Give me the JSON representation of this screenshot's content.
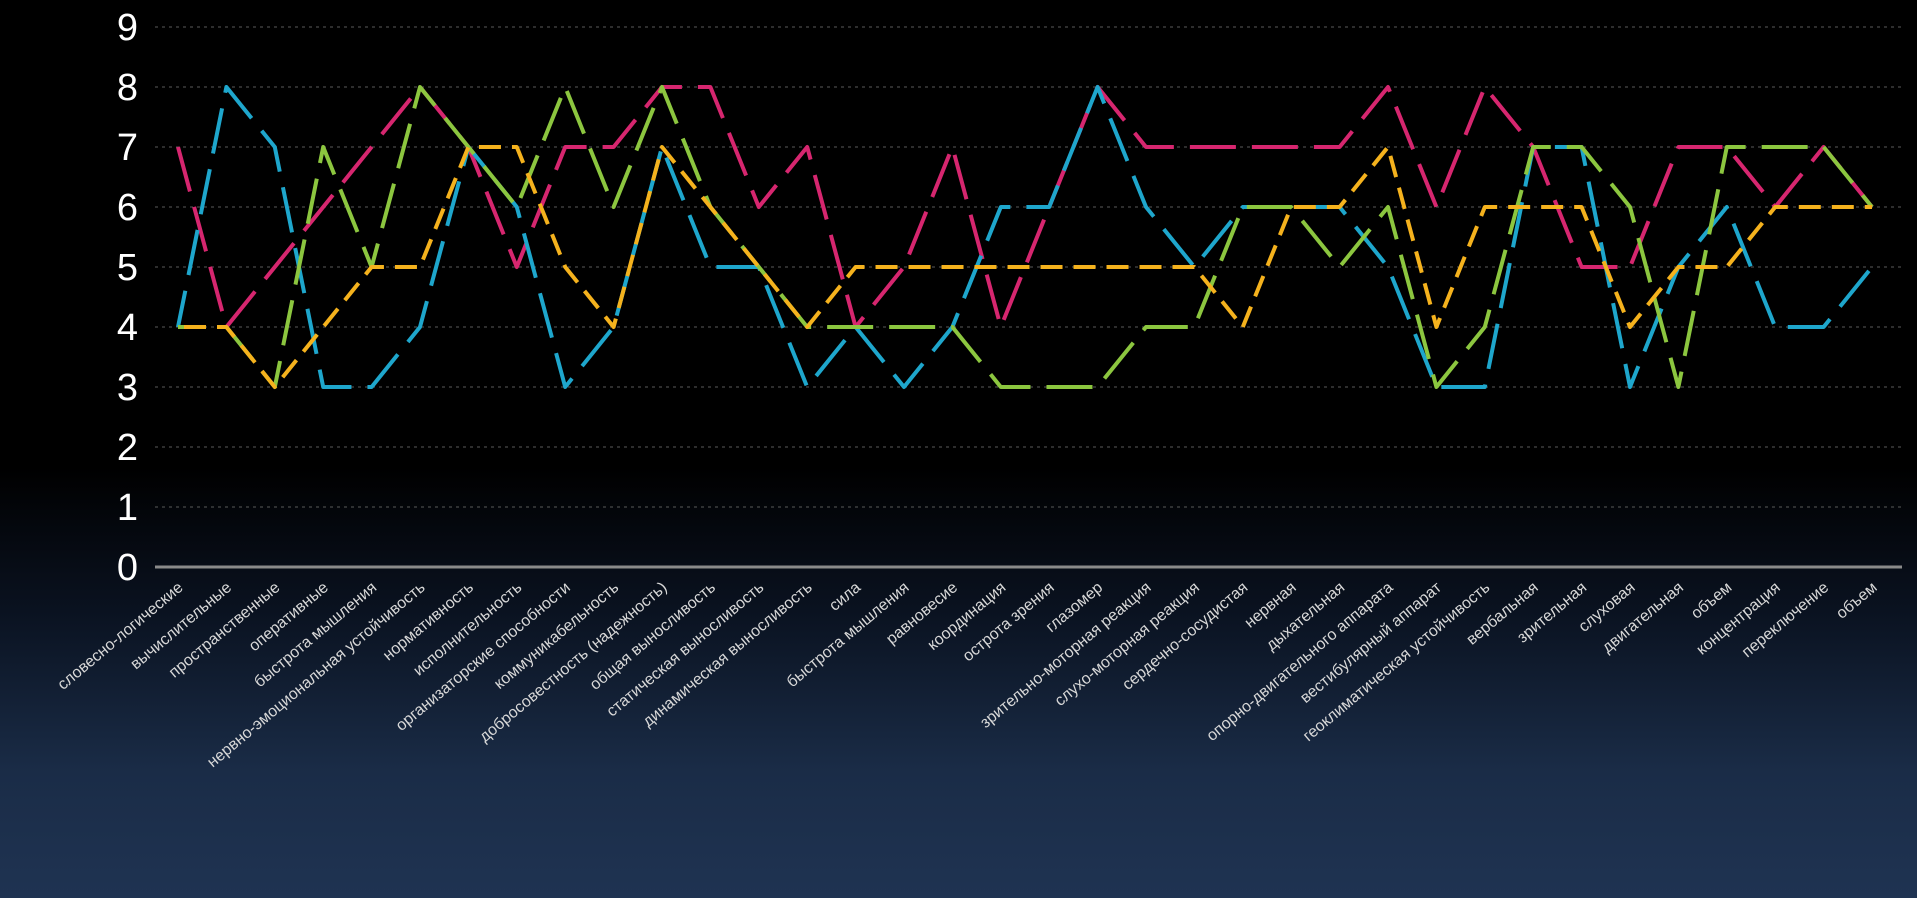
{
  "chart_data": {
    "type": "line",
    "title": "",
    "xlabel": "",
    "ylabel": "",
    "ylim": [
      0,
      9
    ],
    "yticks": [
      "0",
      "1",
      "2",
      "3",
      "4",
      "5",
      "6",
      "7",
      "8",
      "9"
    ],
    "grid": true,
    "legend": "none",
    "categories": [
      "словесно-логические",
      "вычислительные",
      "пространственные",
      "оперативные",
      "быстрота мышления",
      "нервно-эмоциональная устойчивость",
      "нормативность",
      "исполнительность",
      "организаторские способности",
      "коммуникабельность",
      "добросовестность (надежность)",
      "общая выносливость",
      "статическая выносливость",
      "динамическая выносливость",
      "сила",
      "быстрота мышления",
      "равновесие",
      "координация",
      "острота зрения",
      "глазомер",
      "зрительно-моторная реакция",
      "слухо-моторная реакция",
      "сердечно-сосудистая",
      "нервная",
      "дыхательная",
      "опорно-двигательного аппарата",
      "вестибулярный аппарат",
      "геоклиматическая устойчивость",
      "вербальная",
      "зрительная",
      "слуховая",
      "двигательная",
      "объем",
      "концентрация",
      "переключение",
      "объем"
    ],
    "series": [
      {
        "color": "#d6266f",
        "dash": "46 16",
        "values": [
          7,
          4,
          5,
          6,
          7,
          8,
          7,
          5,
          7,
          7,
          8,
          8,
          6,
          7,
          4,
          5,
          7,
          4,
          6,
          8,
          7,
          7,
          7,
          7,
          7,
          8,
          6,
          8,
          7,
          5,
          5,
          7,
          7,
          6,
          7,
          6
        ]
      },
      {
        "color": "#1ea6cc",
        "dash": "46 16",
        "values": [
          4,
          8,
          7,
          3,
          3,
          4,
          7,
          6,
          3,
          4,
          7,
          5,
          5,
          3,
          4,
          3,
          4,
          6,
          6,
          8,
          6,
          5,
          6,
          6,
          6,
          5,
          3,
          3,
          7,
          7,
          3,
          5,
          6,
          4,
          4,
          5
        ]
      },
      {
        "color": "#8cc63f",
        "dash": "46 16",
        "values": [
          4,
          4,
          3,
          7,
          5,
          8,
          7,
          6,
          8,
          6,
          8,
          6,
          5,
          4,
          4,
          4,
          4,
          3,
          3,
          3,
          4,
          4,
          6,
          6,
          5,
          6,
          3,
          4,
          7,
          7,
          6,
          3,
          7,
          7,
          7,
          6
        ]
      },
      {
        "color": "#f5b21d",
        "dash": "22 11",
        "values": [
          4,
          4,
          3,
          4,
          5,
          5,
          7,
          7,
          5,
          4,
          7,
          6,
          5,
          4,
          5,
          5,
          5,
          5,
          5,
          5,
          5,
          5,
          4,
          6,
          6,
          7,
          4,
          6,
          6,
          6,
          4,
          5,
          5,
          6,
          6,
          6
        ]
      }
    ]
  }
}
